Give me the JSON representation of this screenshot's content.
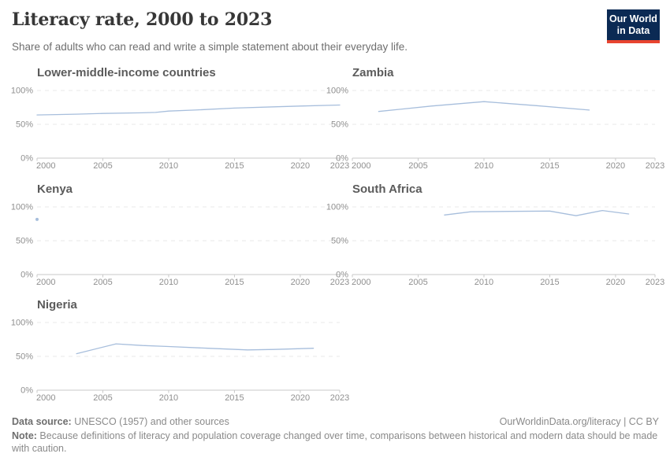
{
  "header": {
    "title": "Literacy rate, 2000 to 2023",
    "subtitle": "Share of adults who can read and write a simple statement about their everyday life.",
    "logo": {
      "line1": "Our World",
      "line2": "in Data"
    }
  },
  "footer": {
    "datasource_label": "Data source:",
    "datasource_text": " UNESCO (1957) and other sources",
    "link_text": "OurWorldinData.org/literacy | CC BY",
    "note_label": "Note:",
    "note_text": " Because definitions of literacy and population coverage changed over time, comparisons between historical and modern data should be made with caution."
  },
  "colors": {
    "line": "#a7bedc",
    "logo_bg": "#0b2a54",
    "logo_red": "#e8442f",
    "gridline": "#e8e8e8",
    "axis": "#c9c9c9",
    "tick_label": "#8f8f8f"
  },
  "chart_data": [
    {
      "type": "line",
      "id": "lower-middle-income-countries",
      "title": "Lower-middle-income countries",
      "xlim": [
        2000,
        2023
      ],
      "ylim": [
        0,
        100
      ],
      "xticks": [
        2000,
        2005,
        2010,
        2015,
        2020,
        2023
      ],
      "yticks": [
        0,
        50,
        100
      ],
      "ytick_suffix": "%",
      "grid": "dashed-horizontal",
      "legend_position": "none",
      "points": [
        [
          2000,
          63.8
        ],
        [
          2003,
          65
        ],
        [
          2005,
          66
        ],
        [
          2008,
          67
        ],
        [
          2009,
          67.5
        ],
        [
          2010,
          69.5
        ],
        [
          2012,
          71
        ],
        [
          2015,
          74
        ],
        [
          2018,
          75.8
        ],
        [
          2020,
          77
        ],
        [
          2023,
          78.5
        ]
      ]
    },
    {
      "type": "line",
      "id": "zambia",
      "title": "Zambia",
      "xlim": [
        2000,
        2023
      ],
      "ylim": [
        0,
        100
      ],
      "xticks": [
        2000,
        2005,
        2010,
        2015,
        2020,
        2023
      ],
      "yticks": [
        0,
        50,
        100
      ],
      "ytick_suffix": "%",
      "grid": "dashed-horizontal",
      "legend_position": "none",
      "points": [
        [
          2002,
          69
        ],
        [
          2006,
          77
        ],
        [
          2010,
          83.5
        ],
        [
          2014,
          77.5
        ],
        [
          2018,
          71
        ]
      ]
    },
    {
      "type": "line",
      "id": "kenya",
      "title": "Kenya",
      "xlim": [
        2000,
        2023
      ],
      "ylim": [
        0,
        100
      ],
      "xticks": [
        2000,
        2005,
        2010,
        2015,
        2020,
        2023
      ],
      "yticks": [
        0,
        50,
        100
      ],
      "ytick_suffix": "%",
      "grid": "dashed-horizontal",
      "legend_position": "none",
      "points": [
        [
          2000,
          81.5
        ]
      ]
    },
    {
      "type": "line",
      "id": "south-africa",
      "title": "South Africa",
      "xlim": [
        2000,
        2023
      ],
      "ylim": [
        0,
        100
      ],
      "xticks": [
        2000,
        2005,
        2010,
        2015,
        2020,
        2023
      ],
      "yticks": [
        0,
        50,
        100
      ],
      "ytick_suffix": "%",
      "grid": "dashed-horizontal",
      "legend_position": "none",
      "points": [
        [
          2007,
          88
        ],
        [
          2009,
          92.8
        ],
        [
          2012,
          93.4
        ],
        [
          2015,
          93.8
        ],
        [
          2017,
          87
        ],
        [
          2019,
          94.6
        ],
        [
          2021,
          89.5
        ]
      ]
    },
    {
      "type": "line",
      "id": "nigeria",
      "title": "Nigeria",
      "xlim": [
        2000,
        2023
      ],
      "ylim": [
        0,
        100
      ],
      "xticks": [
        2000,
        2005,
        2010,
        2015,
        2020,
        2023
      ],
      "yticks": [
        0,
        50,
        100
      ],
      "ytick_suffix": "%",
      "grid": "dashed-horizontal",
      "legend_position": "none",
      "points": [
        [
          2003,
          54
        ],
        [
          2006,
          68.5
        ],
        [
          2008,
          66
        ],
        [
          2010,
          64.5
        ],
        [
          2013,
          62
        ],
        [
          2016,
          59.5
        ],
        [
          2018,
          60.2
        ],
        [
          2021,
          62
        ]
      ]
    }
  ]
}
